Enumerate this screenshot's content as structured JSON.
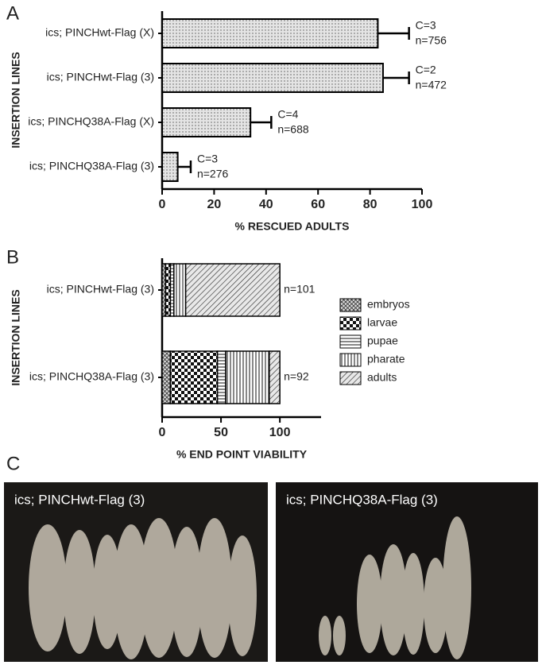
{
  "panel_labels": [
    "A",
    "B",
    "C"
  ],
  "photos": [
    {
      "caption": "ics; PINCHwt-Flag (3)"
    },
    {
      "caption": "ics; PINCHQ38A-Flag (3)"
    }
  ],
  "chart_data": [
    {
      "type": "hbar",
      "categories": [
        "ics; PINCHwt-Flag (X)",
        "ics; PINCHwt-Flag (3)",
        "ics; PINCHQ38A-Flag (X)",
        "ics; PINCHQ38A-Flag (3)"
      ],
      "values": [
        83,
        85,
        34,
        6
      ],
      "errors": [
        12,
        10,
        8,
        5
      ],
      "color": "#e4e4e4",
      "annotations": [
        [
          "C=3",
          "n=756"
        ],
        [
          "C=2",
          "n=472"
        ],
        [
          "C=4",
          "n=688"
        ],
        [
          "C=3",
          "n=276"
        ]
      ],
      "xlabel": "% RESCUED ADULTS",
      "ylabel": "INSERTION LINES",
      "xlim": [
        0,
        100
      ],
      "xticks": [
        0,
        20,
        40,
        60,
        80,
        100
      ]
    },
    {
      "type": "stacked_hbar",
      "categories": [
        "ics; PINCHwt-Flag (3)",
        "ics; PINCHQ38A-Flag (3)"
      ],
      "series": [
        {
          "name": "embryos",
          "color": "#d8d8d8",
          "values": [
            3,
            7
          ]
        },
        {
          "name": "larvae",
          "color": "#ffffff",
          "values": [
            4,
            40
          ]
        },
        {
          "name": "pupae",
          "color": "#ffffff",
          "values": [
            3,
            7
          ]
        },
        {
          "name": "pharate",
          "color": "#ffffff",
          "values": [
            10,
            37
          ]
        },
        {
          "name": "adults",
          "color": "#e8e8e8",
          "values": [
            80,
            9
          ]
        }
      ],
      "annotations": [
        "n=101",
        "n=92"
      ],
      "xlabel": "% END POINT VIABILITY",
      "ylabel": "INSERTION LINES",
      "xlim": [
        0,
        135
      ],
      "xticks": [
        0,
        50,
        100
      ]
    }
  ]
}
